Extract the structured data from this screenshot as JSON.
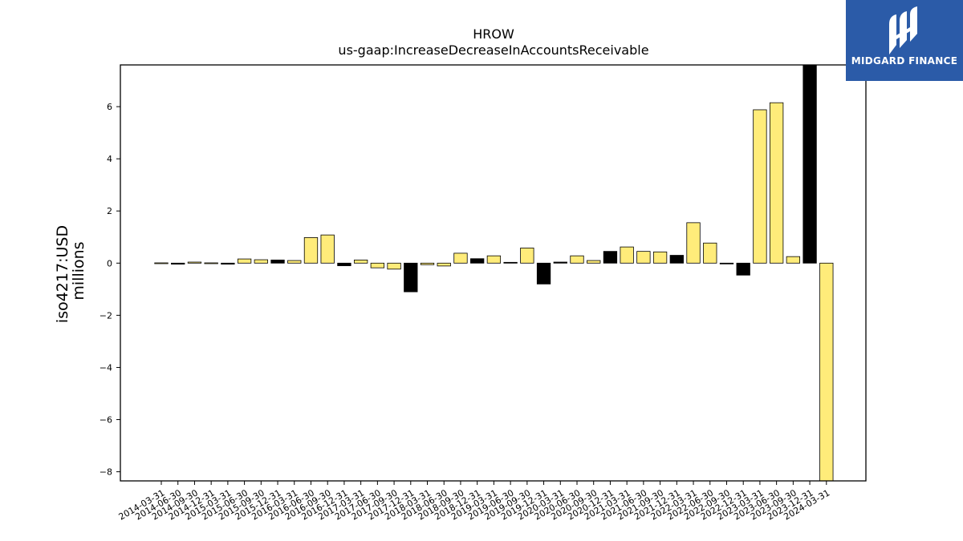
{
  "chart_data": {
    "type": "bar",
    "title": "HROW",
    "subtitle": "us-gaap:IncreaseDecreaseInAccountsReceivable",
    "xlabel": "",
    "ylabel": "iso4217:USD",
    "ylabel2": "millions",
    "ylim": [
      -8.35,
      7.6
    ],
    "yticks": [
      -8,
      -6,
      -4,
      -2,
      0,
      2,
      4,
      6
    ],
    "ytick_labels": [
      "−8",
      "−6",
      "−4",
      "−2",
      "0",
      "2",
      "4",
      "6"
    ],
    "grid": false,
    "bar_color": "#ffec7a",
    "highlight_color": "#000000",
    "categories": [
      "2014-03-31",
      "2014-06-30",
      "2014-09-30",
      "2014-12-31",
      "2015-03-31",
      "2015-06-30",
      "2015-09-30",
      "2015-12-31",
      "2016-03-31",
      "2016-06-30",
      "2016-09-30",
      "2016-12-31",
      "2017-03-31",
      "2017-06-30",
      "2017-09-30",
      "2017-12-31",
      "2018-03-31",
      "2018-06-30",
      "2018-09-30",
      "2018-12-31",
      "2019-03-31",
      "2019-06-30",
      "2019-09-30",
      "2019-12-31",
      "2020-03-31",
      "2020-06-30",
      "2020-09-30",
      "2020-12-31",
      "2021-03-31",
      "2021-06-30",
      "2021-09-30",
      "2021-12-31",
      "2022-03-31",
      "2022-06-30",
      "2022-09-30",
      "2022-12-31",
      "2023-03-31",
      "2023-06-30",
      "2023-09-30",
      "2023-12-31",
      "2024-03-31"
    ],
    "values": [
      0.01,
      -0.04,
      0.04,
      0.01,
      -0.04,
      0.16,
      0.13,
      0.12,
      0.1,
      0.98,
      1.08,
      -0.1,
      0.12,
      -0.18,
      -0.23,
      -1.1,
      -0.06,
      -0.11,
      0.38,
      0.17,
      0.28,
      0.03,
      0.58,
      -0.8,
      0.04,
      0.28,
      0.1,
      0.45,
      0.62,
      0.45,
      0.43,
      0.3,
      1.55,
      0.77,
      -0.02,
      -0.46,
      5.88,
      6.15,
      0.25,
      7.9,
      -8.4
    ],
    "highlight": [
      false,
      true,
      false,
      false,
      true,
      false,
      false,
      true,
      false,
      false,
      false,
      true,
      false,
      false,
      false,
      true,
      false,
      false,
      false,
      true,
      false,
      true,
      false,
      true,
      true,
      false,
      false,
      true,
      false,
      false,
      false,
      true,
      false,
      false,
      true,
      true,
      false,
      false,
      false,
      true,
      false
    ]
  },
  "logo": {
    "text": "MIDGARD FINANCE"
  }
}
